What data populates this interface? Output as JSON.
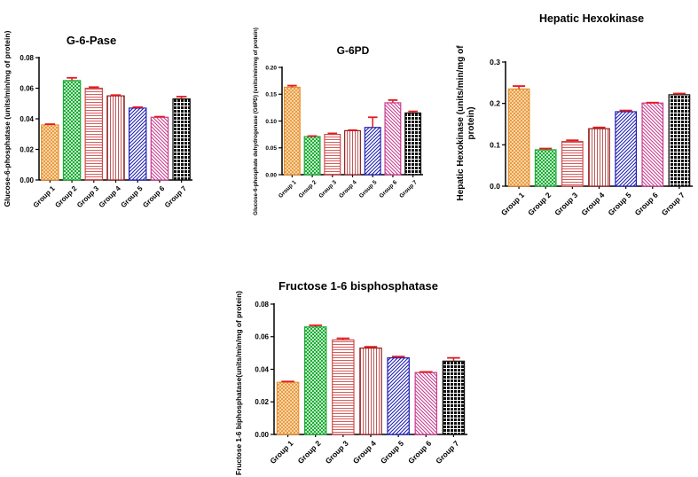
{
  "chart_data": [
    {
      "type": "bar",
      "title": "G-6-Pase",
      "xlabel": "",
      "ylabel": "Glucose-6-phosphatase  (units/min/mg of protein)",
      "categories": [
        "Group 1",
        "Group 2",
        "Group 3",
        "Group 4",
        "Group 5",
        "Group 6",
        "Group 7"
      ],
      "values": [
        0.036,
        0.065,
        0.06,
        0.055,
        0.047,
        0.041,
        0.053
      ],
      "errors": [
        0.0005,
        0.0018,
        0.0007,
        0.0005,
        0.0006,
        0.0004,
        0.0015
      ],
      "ylim": [
        0,
        0.08
      ],
      "yticks": [
        "0.00",
        "0.02",
        "0.04",
        "0.06",
        "0.08"
      ],
      "grid": false
    },
    {
      "type": "bar",
      "title": "G-6PD",
      "xlabel": "",
      "ylabel": "Glucose-6-phosphate dehydrogenase (G6PD)  (units/min/mg of protein)",
      "categories": [
        "Group 1",
        "Group 2",
        "Group 3",
        "Group 4",
        "Group 5",
        "Group 6",
        "Group 7"
      ],
      "values": [
        0.163,
        0.071,
        0.075,
        0.082,
        0.088,
        0.134,
        0.115
      ],
      "errors": [
        0.003,
        0.001,
        0.002,
        0.001,
        0.019,
        0.005,
        0.003
      ],
      "ylim": [
        0,
        0.2
      ],
      "yticks": [
        "0.00",
        "0.05",
        "0.10",
        "0.15",
        "0.20"
      ],
      "grid": false
    },
    {
      "type": "bar",
      "title": "Hepatic Hexokinase",
      "xlabel": "",
      "ylabel": "Hepatic Hexokinase (units/min/mg of protein)",
      "categories": [
        "Group 1",
        "Group 2",
        "Group 3",
        "Group 4",
        "Group 5",
        "Group 6",
        "Group 7"
      ],
      "values": [
        0.235,
        0.088,
        0.108,
        0.139,
        0.18,
        0.201,
        0.221
      ],
      "errors": [
        0.007,
        0.003,
        0.003,
        0.003,
        0.003,
        0.001,
        0.003
      ],
      "ylim": [
        0,
        0.3
      ],
      "yticks": [
        "0.0",
        "0.1",
        "0.2",
        "0.3"
      ],
      "grid": false
    },
    {
      "type": "bar",
      "title": "Fructose 1-6 bisphosphatase",
      "xlabel": "",
      "ylabel": "Fructose 1-6 biphosphatase(units/min/mg of protein)",
      "categories": [
        "Group 1",
        "Group 2",
        "Group 3",
        "Group 4",
        "Group 5",
        "Group 6",
        "Group 7"
      ],
      "values": [
        0.032,
        0.066,
        0.058,
        0.053,
        0.047,
        0.038,
        0.045
      ],
      "errors": [
        0.0005,
        0.001,
        0.001,
        0.0008,
        0.0008,
        0.0004,
        0.002
      ],
      "ylim": [
        0,
        0.08
      ],
      "yticks": [
        "0.00",
        "0.02",
        "0.04",
        "0.06",
        "0.08"
      ],
      "grid": false
    }
  ],
  "styles": {
    "bar_colors": [
      "#e8912f",
      "#1faa3a",
      "#cf4a4a",
      "#8b2020",
      "#1f1fb4",
      "#c83c8f",
      "#111111"
    ],
    "bar_patterns": [
      "crosshatch",
      "check",
      "horizontal",
      "vertical",
      "diagonal-down",
      "diagonal-up",
      "grid"
    ],
    "error_bar_color": "#e41a1c"
  }
}
